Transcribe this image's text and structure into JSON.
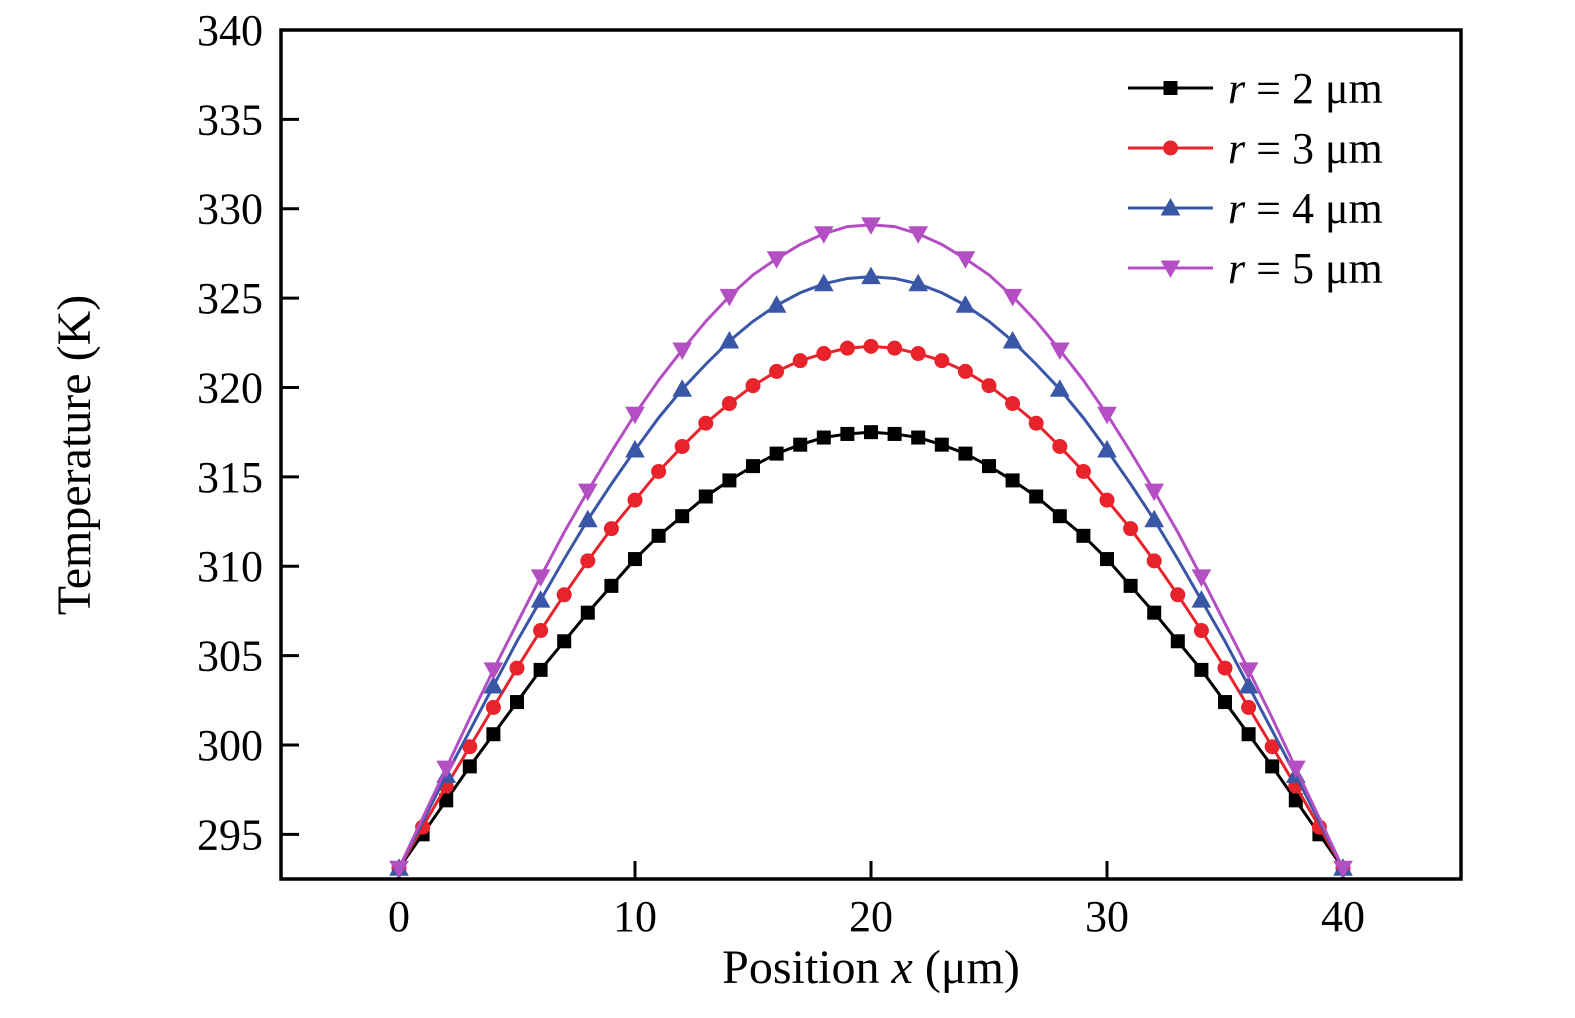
{
  "chart_data": {
    "type": "line",
    "title": "",
    "xlabel_parts": [
      "Position ",
      "x",
      " (μm)"
    ],
    "ylabel": "Temperature (K)",
    "xlim": [
      -5,
      45
    ],
    "ylim": [
      292.5,
      340
    ],
    "x_ticks": [
      0,
      10,
      20,
      30,
      40
    ],
    "y_ticks": [
      295,
      300,
      305,
      310,
      315,
      320,
      325,
      330,
      335,
      340
    ],
    "grid": false,
    "legend_position": "top-right",
    "frame_color": "#000000",
    "background": "#ffffff",
    "x": [
      0,
      1,
      2,
      3,
      4,
      5,
      6,
      7,
      8,
      9,
      10,
      11,
      12,
      13,
      14,
      15,
      16,
      17,
      18,
      19,
      20,
      21,
      22,
      23,
      24,
      25,
      26,
      27,
      28,
      29,
      30,
      31,
      32,
      33,
      34,
      35,
      36,
      37,
      38,
      39,
      40
    ],
    "series": [
      {
        "name": "r = 2 μm",
        "legend_var": "r",
        "legend_rest": " = 2 μm",
        "color": "#000000",
        "marker": "square",
        "marker_every": 1,
        "values": [
          293.1,
          295.0,
          296.9,
          298.8,
          300.6,
          302.4,
          304.2,
          305.8,
          307.4,
          308.9,
          310.4,
          311.7,
          312.8,
          313.9,
          314.8,
          315.6,
          316.3,
          316.8,
          317.2,
          317.4,
          317.5,
          317.4,
          317.2,
          316.8,
          316.3,
          315.6,
          314.8,
          313.9,
          312.8,
          311.7,
          310.4,
          308.9,
          307.4,
          305.8,
          304.2,
          302.4,
          300.6,
          298.8,
          296.9,
          295.0,
          293.1
        ]
      },
      {
        "name": "r = 3 μm",
        "legend_var": "r",
        "legend_rest": " = 3 μm",
        "color": "#e8232b",
        "marker": "circle",
        "marker_every": 1,
        "values": [
          293.1,
          295.4,
          297.7,
          299.9,
          302.1,
          304.3,
          306.4,
          308.4,
          310.3,
          312.1,
          313.7,
          315.3,
          316.7,
          318.0,
          319.1,
          320.1,
          320.9,
          321.5,
          321.9,
          322.2,
          322.3,
          322.2,
          321.9,
          321.5,
          320.9,
          320.1,
          319.1,
          318.0,
          316.7,
          315.3,
          313.7,
          312.1,
          310.3,
          308.4,
          306.4,
          304.3,
          302.1,
          299.9,
          297.7,
          295.4,
          293.1
        ]
      },
      {
        "name": "r = 4 μm",
        "legend_var": "r",
        "legend_rest": " = 4 μm",
        "color": "#3a57a7",
        "marker": "triangle-up",
        "marker_every": 2,
        "values": [
          293.1,
          295.7,
          298.3,
          300.8,
          303.3,
          305.8,
          308.1,
          310.4,
          312.6,
          314.6,
          316.5,
          318.3,
          319.9,
          321.3,
          322.6,
          323.7,
          324.6,
          325.3,
          325.8,
          326.1,
          326.2,
          326.1,
          325.8,
          325.3,
          324.6,
          323.7,
          322.6,
          321.3,
          319.9,
          318.3,
          316.5,
          314.6,
          312.6,
          310.4,
          308.1,
          305.8,
          303.3,
          300.8,
          298.3,
          295.7,
          293.1
        ]
      },
      {
        "name": "r = 5 μm",
        "legend_var": "r",
        "legend_rest": " = 5 μm",
        "color": "#b44fc3",
        "marker": "triangle-down",
        "marker_every": 2,
        "values": [
          293.1,
          295.9,
          298.7,
          301.5,
          304.2,
          306.8,
          309.4,
          311.9,
          314.2,
          316.4,
          318.5,
          320.4,
          322.1,
          323.7,
          325.1,
          326.3,
          327.2,
          328.0,
          328.6,
          329.0,
          329.1,
          329.0,
          328.6,
          328.0,
          327.2,
          326.3,
          325.1,
          323.7,
          322.1,
          320.4,
          318.5,
          316.4,
          314.2,
          311.9,
          309.4,
          306.8,
          304.2,
          301.5,
          298.7,
          295.9,
          293.1
        ]
      }
    ]
  }
}
